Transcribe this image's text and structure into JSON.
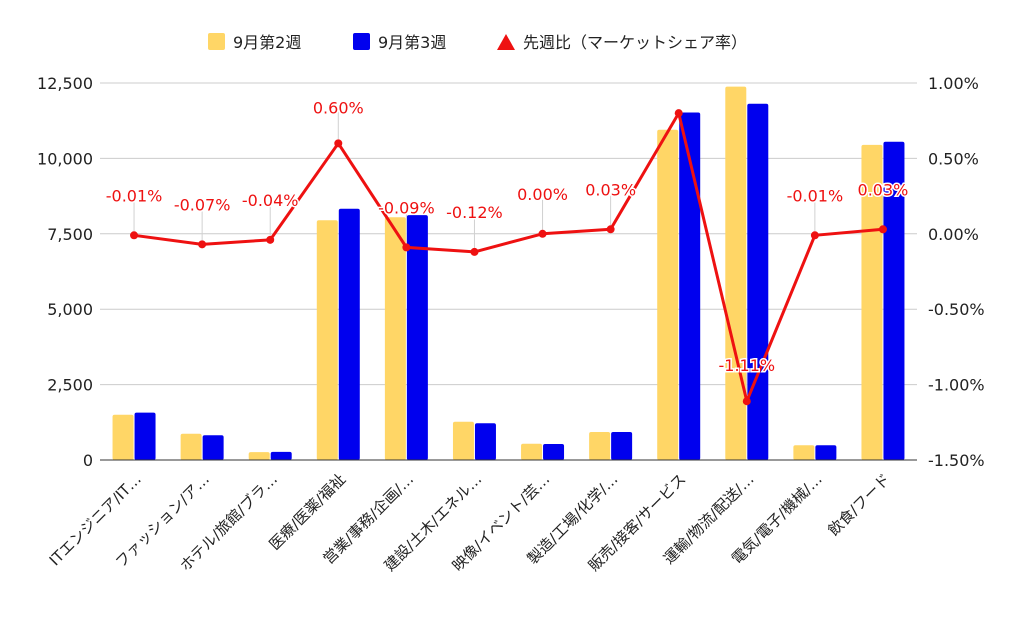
{
  "chart_data": {
    "type": "bar",
    "categories": [
      "ITエンジニア/IT…",
      "ファッション/ア…",
      "ホテル/旅館/ブラ…",
      "医療/医薬/福祉",
      "営業/事務/企画/…",
      "建設/土木/エネル…",
      "映像/イベント/芸…",
      "製造/工場/化学/…",
      "販売/接客/サービス",
      "運輸/物流/配送/…",
      "電気/電子/機械/…",
      "飲食/フード"
    ],
    "series": [
      {
        "name": "9月第2週",
        "type": "bar",
        "axis": "left",
        "color": "#FFD666",
        "values": [
          1500,
          870,
          260,
          7950,
          8050,
          1270,
          540,
          930,
          10950,
          12380,
          490,
          10450
        ]
      },
      {
        "name": "9月第3週",
        "type": "bar",
        "axis": "left",
        "color": "#0000EE",
        "values": [
          1570,
          820,
          270,
          8330,
          8120,
          1220,
          530,
          930,
          11520,
          11810,
          490,
          10550
        ]
      },
      {
        "name": "先週比（マーケットシェア率）",
        "type": "line",
        "axis": "right",
        "color": "#EE1111",
        "values": [
          -0.01,
          -0.07,
          -0.04,
          0.6,
          -0.09,
          -0.12,
          0.0,
          0.03,
          0.8,
          -1.11,
          -0.01,
          0.03
        ],
        "labels": [
          "-0.01%",
          "-0.07%",
          "-0.04%",
          "0.60%",
          "-0.09%",
          "-0.12%",
          "0.00%",
          "0.03%",
          "",
          "-1.11%",
          "-0.01%",
          "0.03%"
        ]
      }
    ],
    "ylim": [
      0,
      12500
    ],
    "yticks": [
      "0",
      "2,500",
      "5,000",
      "7,500",
      "10,000",
      "12,500"
    ],
    "y2lim": [
      -1.5,
      1.0
    ],
    "y2ticks": [
      "-1.50%",
      "-1.00%",
      "-0.50%",
      "0.00%",
      "0.50%",
      "1.00%"
    ],
    "legend_position": "top",
    "grid": true
  }
}
